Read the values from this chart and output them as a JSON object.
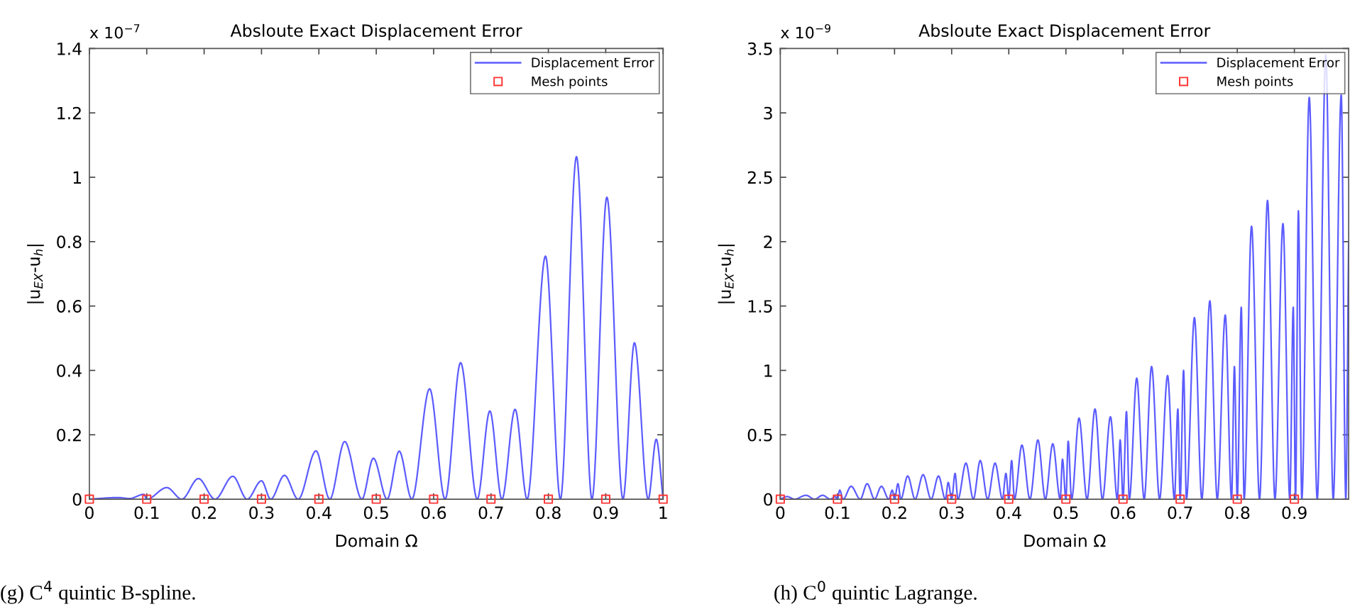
{
  "chart_data": [
    {
      "type": "line",
      "title": "Absloute Exact Displacement Error",
      "xlabel": "Domain Ω",
      "ylabel": "|u$_{EX}$-u$_{h}$|",
      "annotations": [
        "x 10$^{−7}$",
        "(g) C$^{4}$ quintic B-spline."
      ],
      "xlim": [
        0,
        1
      ],
      "ylim": [
        0,
        1.4
      ],
      "xticks": [
        0,
        0.1,
        0.2,
        0.3,
        0.4,
        0.5,
        0.6,
        0.7,
        0.8,
        0.9,
        1
      ],
      "yticks": [
        0,
        0.2,
        0.4,
        0.6,
        0.8,
        1,
        1.2,
        1.4
      ],
      "grid": false,
      "legend": "top right",
      "series": [
        {
          "name": "Displacement Error",
          "color": "#5c5cff",
          "line_style": "solid",
          "marker": "none",
          "x": [
            0,
            0.05,
            0.07,
            0.095,
            0.1,
            0.135,
            0.161,
            0.19,
            0.219,
            0.25,
            0.275,
            0.3,
            0.316,
            0.34,
            0.364,
            0.395,
            0.419,
            0.445,
            0.475,
            0.495,
            0.519,
            0.54,
            0.562,
            0.593,
            0.62,
            0.647,
            0.676,
            0.698,
            0.719,
            0.742,
            0.763,
            0.795,
            0.821,
            0.849,
            0.876,
            0.902,
            0.93,
            0.95,
            0.974,
            0.988,
            1
          ],
          "values": [
            0,
            0.005,
            0.002,
            0.015,
            0,
            0.036,
            0,
            0.064,
            0,
            0.071,
            0,
            0.057,
            0,
            0.074,
            0,
            0.15,
            0,
            0.179,
            0,
            0.127,
            0,
            0.149,
            0,
            0.343,
            0,
            0.424,
            0,
            0.274,
            0,
            0.279,
            0,
            0.755,
            0,
            1.064,
            0,
            0.938,
            0,
            0.486,
            0,
            0.186,
            0
          ]
        },
        {
          "name": "Mesh points",
          "type": "scatter",
          "color": "#ff3333",
          "marker": "square",
          "x": [
            0,
            0.1,
            0.2,
            0.3,
            0.4,
            0.5,
            0.6,
            0.7,
            0.8,
            0.9,
            1
          ],
          "values": [
            0,
            0,
            0,
            0,
            0,
            0,
            0,
            0,
            0,
            0,
            0
          ]
        }
      ]
    },
    {
      "type": "line",
      "title": "Absloute Exact Displacement Error",
      "xlabel": "Domain Ω",
      "ylabel": "|u$_{EX}$-u$_{h}$|",
      "annotations": [
        "x 10$^{−9}$",
        "(h) C$^{0}$ quintic Lagrange."
      ],
      "xlim": [
        0,
        0.995
      ],
      "ylim": [
        0,
        3.5
      ],
      "xticks": [
        0,
        0.1,
        0.2,
        0.3,
        0.4,
        0.5,
        0.6,
        0.7,
        0.8,
        0.9
      ],
      "yticks": [
        0,
        0.5,
        1,
        1.5,
        2,
        2.5,
        3,
        3.5
      ],
      "grid": false,
      "legend": "top right",
      "series": [
        {
          "name": "Displacement Error",
          "color": "#5c5cff",
          "line_style": "solid",
          "marker": "none",
          "x": [
            0,
            0.012,
            0.025,
            0.045,
            0.06,
            0.074,
            0.088,
            0.096,
            0.1,
            0.104,
            0.11,
            0.124,
            0.14,
            0.152,
            0.165,
            0.177,
            0.19,
            0.196,
            0.2,
            0.206,
            0.211,
            0.223,
            0.236,
            0.25,
            0.264,
            0.277,
            0.289,
            0.294,
            0.3,
            0.306,
            0.311,
            0.325,
            0.338,
            0.35,
            0.363,
            0.376,
            0.389,
            0.395,
            0.4,
            0.405,
            0.41,
            0.423,
            0.437,
            0.451,
            0.464,
            0.477,
            0.49,
            0.494,
            0.5,
            0.504,
            0.51,
            0.523,
            0.537,
            0.551,
            0.564,
            0.578,
            0.59,
            0.595,
            0.6,
            0.606,
            0.611,
            0.624,
            0.637,
            0.65,
            0.664,
            0.678,
            0.69,
            0.696,
            0.7,
            0.706,
            0.711,
            0.725,
            0.738,
            0.752,
            0.765,
            0.779,
            0.79,
            0.795,
            0.8,
            0.807,
            0.812,
            0.825,
            0.839,
            0.853,
            0.866,
            0.88,
            0.892,
            0.898,
            0.902,
            0.907,
            0.913,
            0.926,
            0.94,
            0.955,
            0.968,
            0.982,
            0.99,
            0.995
          ],
          "values": [
            0,
            0.02,
            0,
            0.03,
            0,
            0.03,
            0,
            0.02,
            0,
            0.07,
            0,
            0.1,
            0,
            0.12,
            0,
            0.1,
            0,
            0.07,
            0,
            0.12,
            0,
            0.18,
            0,
            0.19,
            0,
            0.18,
            0,
            0.13,
            0,
            0.2,
            0,
            0.28,
            0,
            0.3,
            0,
            0.28,
            0,
            0.2,
            0,
            0.3,
            0,
            0.42,
            0,
            0.46,
            0,
            0.43,
            0,
            0.31,
            0,
            0.45,
            0,
            0.63,
            0,
            0.7,
            0,
            0.64,
            0,
            0.46,
            0,
            0.68,
            0,
            0.94,
            0,
            1.03,
            0,
            0.96,
            0,
            0.7,
            0,
            1,
            0,
            1.41,
            0,
            1.54,
            0,
            1.43,
            0,
            1.03,
            0,
            1.49,
            0,
            2.12,
            0,
            2.32,
            0,
            2.14,
            0,
            1.49,
            0,
            2.24,
            0,
            3.12,
            0,
            3.45,
            0,
            3.14,
            0,
            2
          ]
        },
        {
          "name": "Mesh points",
          "type": "scatter",
          "color": "#ff3333",
          "marker": "square",
          "x": [
            0,
            0.1,
            0.2,
            0.3,
            0.4,
            0.5,
            0.6,
            0.7,
            0.8,
            0.9
          ],
          "values": [
            0,
            0,
            0,
            0,
            0,
            0,
            0,
            0,
            0,
            0
          ]
        }
      ]
    }
  ]
}
